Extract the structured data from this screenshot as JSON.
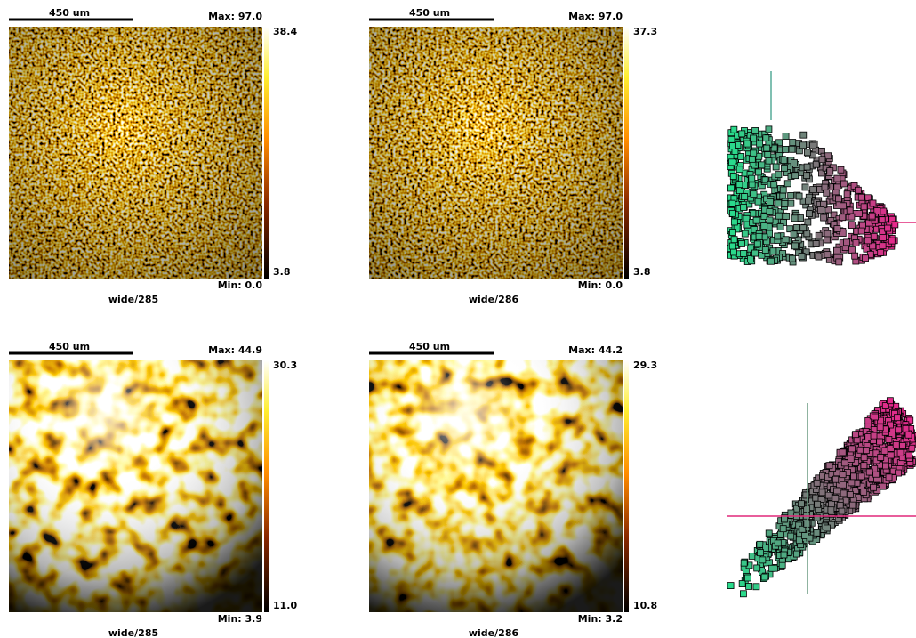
{
  "panels": [
    {
      "scale_bar": "450 um",
      "max": "Max: 97.0",
      "min": "Min: 0.0",
      "cbar_top": "38.4",
      "cbar_bottom": "3.8",
      "caption": "wide/285"
    },
    {
      "scale_bar": "450 um",
      "max": "Max: 97.0",
      "min": "Min: 0.0",
      "cbar_top": "37.3",
      "cbar_bottom": "3.8",
      "caption": "wide/286"
    },
    {
      "scale_bar": "450 um",
      "max": "Max: 44.9",
      "min": "Min: 3.9",
      "cbar_top": "30.3",
      "cbar_bottom": "11.0",
      "caption": "wide/285"
    },
    {
      "scale_bar": "450 um",
      "max": "Max: 44.2",
      "min": "Min: 3.2",
      "cbar_top": "29.3",
      "cbar_bottom": "10.8",
      "caption": "wide/286"
    }
  ]
}
